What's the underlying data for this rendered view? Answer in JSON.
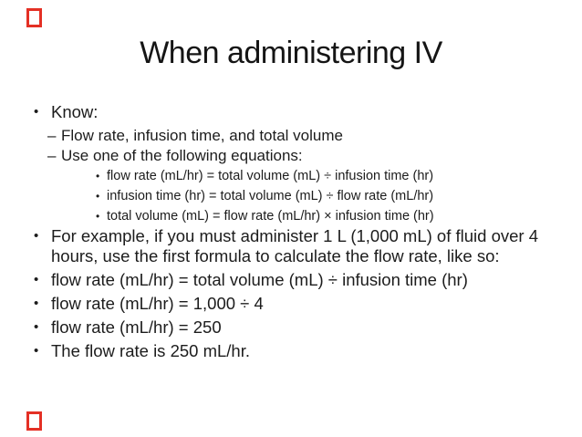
{
  "slide": {
    "title": "When administering IV",
    "colors": {
      "background": "#ffffff",
      "text": "#1c1c1c",
      "corner_marker_red": "#e43025"
    },
    "corner_markers": {
      "top_left": "red-outline-rectangle",
      "bottom_left": "red-outline-rectangle"
    },
    "bullets": {
      "level1_glyph": "•",
      "level2_glyph": "–",
      "level3_glyph": "•"
    },
    "items": [
      {
        "level": 1,
        "text": "Know:"
      },
      {
        "level": 2,
        "text": "Flow rate, infusion time, and total volume"
      },
      {
        "level": 2,
        "text": "Use one of the following equations:"
      },
      {
        "level": 3,
        "text": "flow rate (mL/hr) = total volume (mL) ÷ infusion time (hr)"
      },
      {
        "level": 3,
        "text": "infusion time (hr) = total volume (mL) ÷ flow rate (mL/hr)"
      },
      {
        "level": 3,
        "text": "total volume (mL) = flow rate (mL/hr) × infusion time (hr)"
      },
      {
        "level": 1,
        "text": "For example, if you must administer 1 L (1,000 mL) of fluid over 4 hours, use the first formula to calculate the flow rate, like so:"
      },
      {
        "level": 1,
        "text": "flow rate (mL/hr) = total volume (mL) ÷ infusion time (hr)"
      },
      {
        "level": 1,
        "text": "flow rate (mL/hr) = 1,000 ÷ 4"
      },
      {
        "level": 1,
        "text": "flow rate (mL/hr) = 250"
      },
      {
        "level": 1,
        "text": "The flow rate is 250 mL/hr."
      }
    ]
  }
}
